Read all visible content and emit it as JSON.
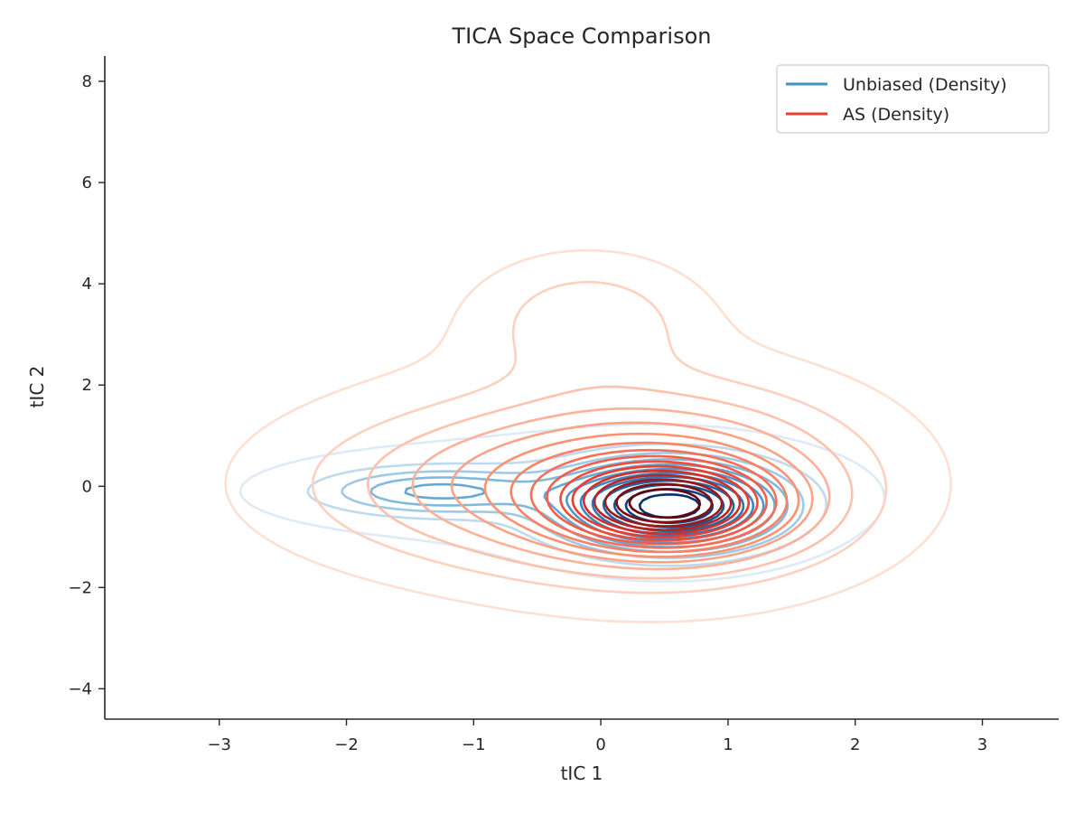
{
  "chart_data": {
    "type": "contour",
    "title": "TICA Space Comparison",
    "xlabel": "tIC 1",
    "ylabel": "tIC 2",
    "xlim": [
      -3.9,
      3.6
    ],
    "ylim": [
      -4.6,
      8.5
    ],
    "xticks": [
      -3,
      -2,
      -1,
      0,
      1,
      2,
      3
    ],
    "yticks": [
      -4,
      -2,
      0,
      2,
      4,
      6,
      8
    ],
    "xtick_labels": [
      "−3",
      "−2",
      "−1",
      "0",
      "1",
      "2",
      "3"
    ],
    "ytick_labels": [
      "−4",
      "−2",
      "0",
      "2",
      "4",
      "6",
      "8"
    ],
    "grid": false,
    "legend_position": "top-right",
    "series": [
      {
        "name": "Unbiased (Density)",
        "color": "#4292c6",
        "levels": 12,
        "components": [
          {
            "mx": 0.55,
            "my": -0.4,
            "sx": 0.55,
            "sy": 0.55,
            "w": 1.0
          },
          {
            "mx": -1.3,
            "my": -0.1,
            "sx": 0.6,
            "sy": 0.3,
            "w": 0.35
          },
          {
            "mx": -0.2,
            "my": -0.1,
            "sx": 1.7,
            "sy": 0.9,
            "w": 0.08
          }
        ]
      },
      {
        "name": "AS (Density)",
        "color": "#ef3b2c",
        "levels": 16,
        "components": [
          {
            "mx": 0.55,
            "my": -0.4,
            "sx": 0.55,
            "sy": 0.55,
            "w": 1.0
          },
          {
            "mx": 0.55,
            "my": 0.0,
            "sx": 1.0,
            "sy": 1.2,
            "w": 0.55
          },
          {
            "mx": -0.8,
            "my": 0.0,
            "sx": 1.1,
            "sy": 1.0,
            "w": 0.3
          },
          {
            "mx": -0.1,
            "my": 3.3,
            "sx": 0.55,
            "sy": 0.8,
            "w": 0.22
          },
          {
            "mx": -0.3,
            "my": 0.8,
            "sx": 1.6,
            "sy": 1.9,
            "w": 0.06
          }
        ]
      }
    ]
  }
}
